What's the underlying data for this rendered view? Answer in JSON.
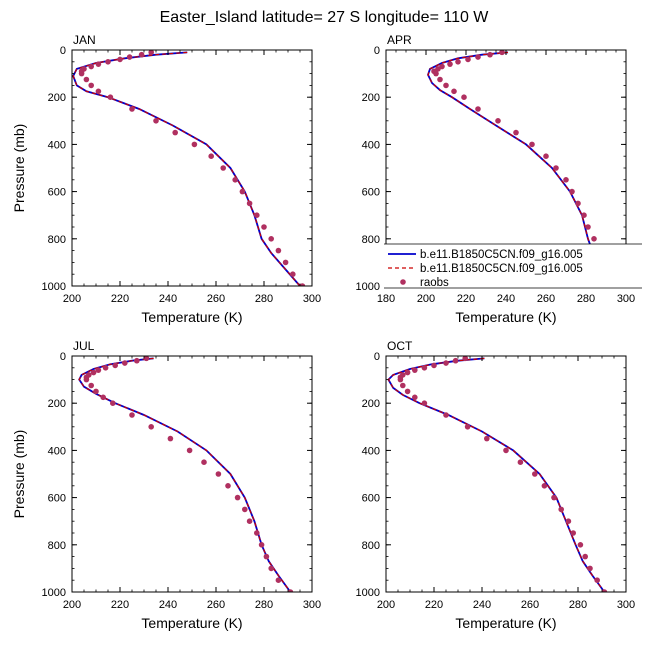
{
  "figure": {
    "title": "Easter_Island  latitude= 27 S longitude= 110 W"
  },
  "legend": {
    "entries": [
      {
        "label": "b.e11.B1850C5CN.f09_g16.005",
        "color": "#0000cc",
        "style": "solid"
      },
      {
        "label": "b.e11.B1850C5CN.f09_g16.005",
        "color": "#cc0000",
        "style": "dashed"
      },
      {
        "label": "raobs",
        "color": "#b03060",
        "style": "marker"
      }
    ]
  },
  "chart_data": [
    {
      "type": "line",
      "title": "JAN",
      "xlabel": "Temperature (K)",
      "ylabel": "Pressure (mb)",
      "xlim": [
        200,
        300
      ],
      "ylim": [
        1000,
        0
      ],
      "x_ticks": [
        200,
        220,
        240,
        260,
        280,
        300
      ],
      "y_ticks": [
        0,
        200,
        400,
        600,
        800,
        1000
      ],
      "series": [
        {
          "name": "b.e11.B1850C5CN.f09_g16.005",
          "color": "#0000cc",
          "style": "solid",
          "x": [
            248,
            235,
            222,
            210,
            202,
            200.5,
            202,
            206,
            215,
            228,
            242,
            256,
            266,
            272,
            276,
            279,
            283,
            289,
            295
          ],
          "y": [
            10,
            20,
            35,
            55,
            80,
            110,
            150,
            175,
            200,
            250,
            320,
            400,
            500,
            600,
            700,
            800,
            860,
            930,
            1000
          ]
        },
        {
          "name": "b.e11.B1850C5CN.f09_g16.005",
          "color": "#cc0000",
          "style": "dashed",
          "x": [
            248,
            235,
            222,
            210,
            202,
            200.5,
            202,
            206,
            215,
            228,
            242,
            256,
            266,
            272,
            276,
            279,
            283,
            289,
            295
          ],
          "y": [
            10,
            20,
            35,
            55,
            80,
            110,
            150,
            175,
            200,
            250,
            320,
            400,
            500,
            600,
            700,
            800,
            860,
            930,
            1000
          ]
        },
        {
          "name": "raobs",
          "color": "#b03060",
          "style": "marker",
          "x": [
            233,
            229,
            224,
            220,
            215,
            211,
            208,
            205,
            204,
            204,
            206,
            208,
            211,
            216,
            225,
            235,
            243,
            251,
            258,
            263,
            268,
            271,
            274,
            277,
            280,
            283,
            286,
            289,
            292,
            296
          ],
          "y": [
            10,
            20,
            30,
            40,
            50,
            60,
            70,
            80,
            90,
            100,
            125,
            150,
            175,
            200,
            250,
            300,
            350,
            400,
            450,
            500,
            550,
            600,
            650,
            700,
            750,
            800,
            850,
            900,
            950,
            1000
          ]
        }
      ]
    },
    {
      "type": "line",
      "title": "APR",
      "xlabel": "Temperature (K)",
      "ylabel": "",
      "xlim": [
        180,
        300
      ],
      "ylim": [
        1000,
        0
      ],
      "x_ticks": [
        180,
        200,
        220,
        240,
        260,
        280,
        300
      ],
      "y_ticks": [
        0,
        200,
        400,
        600,
        800,
        1000
      ],
      "series": [
        {
          "name": "b.e11.B1850C5CN.f09_g16.005",
          "color": "#0000cc",
          "style": "solid",
          "x": [
            241,
            228,
            216,
            208,
            202,
            201,
            203,
            207,
            213,
            222,
            235,
            250,
            263,
            272,
            278,
            281,
            284,
            288,
            293
          ],
          "y": [
            10,
            20,
            35,
            55,
            80,
            105,
            140,
            170,
            200,
            250,
            320,
            400,
            500,
            600,
            700,
            800,
            870,
            930,
            1000
          ]
        },
        {
          "name": "b.e11.B1850C5CN.f09_g16.005",
          "color": "#cc0000",
          "style": "dashed",
          "x": [
            241,
            228,
            216,
            208,
            202,
            201,
            203,
            207,
            213,
            222,
            235,
            250,
            263,
            272,
            278,
            281,
            284,
            288,
            293
          ],
          "y": [
            10,
            20,
            35,
            55,
            80,
            105,
            140,
            170,
            200,
            250,
            320,
            400,
            500,
            600,
            700,
            800,
            870,
            930,
            1000
          ]
        },
        {
          "name": "raobs",
          "color": "#b03060",
          "style": "marker",
          "x": [
            238,
            232,
            226,
            221,
            216,
            212,
            208,
            206,
            204,
            205,
            207,
            210,
            214,
            219,
            226,
            236,
            245,
            253,
            260,
            265,
            270,
            273,
            276,
            279,
            281,
            284,
            286,
            289,
            292,
            296
          ],
          "y": [
            10,
            20,
            30,
            40,
            50,
            60,
            70,
            80,
            90,
            100,
            125,
            150,
            175,
            200,
            250,
            300,
            350,
            400,
            450,
            500,
            550,
            600,
            650,
            700,
            750,
            800,
            850,
            900,
            950,
            1000
          ]
        }
      ]
    },
    {
      "type": "line",
      "title": "JUL",
      "xlabel": "Temperature (K)",
      "ylabel": "Pressure (mb)",
      "xlim": [
        200,
        300
      ],
      "ylim": [
        1000,
        0
      ],
      "x_ticks": [
        200,
        220,
        240,
        260,
        280,
        300
      ],
      "y_ticks": [
        0,
        200,
        400,
        600,
        800,
        1000
      ],
      "series": [
        {
          "name": "b.e11.B1850C5CN.f09_g16.005",
          "color": "#0000cc",
          "style": "solid",
          "x": [
            234,
            225,
            216,
            209,
            204,
            203,
            205,
            210,
            218,
            230,
            244,
            256,
            266,
            272,
            276,
            279,
            282,
            286,
            291
          ],
          "y": [
            10,
            20,
            35,
            55,
            80,
            100,
            130,
            160,
            200,
            250,
            320,
            400,
            500,
            600,
            700,
            800,
            870,
            930,
            1000
          ]
        },
        {
          "name": "b.e11.B1850C5CN.f09_g16.005",
          "color": "#cc0000",
          "style": "dashed",
          "x": [
            234,
            225,
            216,
            209,
            204,
            203,
            205,
            210,
            218,
            230,
            244,
            256,
            266,
            272,
            276,
            279,
            282,
            286,
            291
          ],
          "y": [
            10,
            20,
            35,
            55,
            80,
            100,
            130,
            160,
            200,
            250,
            320,
            400,
            500,
            600,
            700,
            800,
            870,
            930,
            1000
          ]
        },
        {
          "name": "raobs",
          "color": "#b03060",
          "style": "marker",
          "x": [
            231,
            227,
            222,
            218,
            214,
            211,
            209,
            207,
            206,
            206,
            208,
            210,
            213,
            217,
            225,
            233,
            241,
            249,
            255,
            261,
            265,
            269,
            272,
            274,
            277,
            279,
            281,
            283,
            286,
            291
          ],
          "y": [
            10,
            20,
            30,
            40,
            50,
            60,
            70,
            80,
            90,
            100,
            125,
            150,
            175,
            200,
            250,
            300,
            350,
            400,
            450,
            500,
            550,
            600,
            650,
            700,
            750,
            800,
            850,
            900,
            950,
            1000
          ]
        }
      ]
    },
    {
      "type": "line",
      "title": "OCT",
      "xlabel": "Temperature (K)",
      "ylabel": "",
      "xlim": [
        200,
        300
      ],
      "ylim": [
        1000,
        0
      ],
      "x_ticks": [
        200,
        220,
        240,
        260,
        280,
        300
      ],
      "y_ticks": [
        0,
        200,
        400,
        600,
        800,
        1000
      ],
      "series": [
        {
          "name": "b.e11.B1850C5CN.f09_g16.005",
          "color": "#0000cc",
          "style": "solid",
          "x": [
            241,
            230,
            219,
            210,
            203,
            201,
            203,
            207,
            214,
            226,
            240,
            253,
            264,
            271,
            275,
            279,
            282,
            286,
            291
          ],
          "y": [
            10,
            20,
            35,
            55,
            80,
            100,
            135,
            165,
            200,
            250,
            320,
            400,
            500,
            600,
            700,
            800,
            870,
            930,
            1000
          ]
        },
        {
          "name": "b.e11.B1850C5CN.f09_g16.005",
          "color": "#cc0000",
          "style": "dashed",
          "x": [
            241,
            230,
            219,
            210,
            203,
            201,
            203,
            207,
            214,
            226,
            240,
            253,
            264,
            271,
            275,
            279,
            282,
            286,
            291
          ],
          "y": [
            10,
            20,
            35,
            55,
            80,
            100,
            135,
            165,
            200,
            250,
            320,
            400,
            500,
            600,
            700,
            800,
            870,
            930,
            1000
          ]
        },
        {
          "name": "raobs",
          "color": "#b03060",
          "style": "marker",
          "x": [
            233,
            229,
            225,
            220,
            216,
            212,
            209,
            207,
            206,
            206,
            207,
            209,
            212,
            216,
            225,
            234,
            242,
            250,
            256,
            262,
            266,
            270,
            273,
            276,
            278,
            281,
            283,
            285,
            288,
            291
          ],
          "y": [
            10,
            20,
            30,
            40,
            50,
            60,
            70,
            80,
            90,
            100,
            125,
            150,
            175,
            200,
            250,
            300,
            350,
            400,
            450,
            500,
            550,
            600,
            650,
            700,
            750,
            800,
            850,
            900,
            950,
            1000
          ]
        }
      ]
    }
  ]
}
